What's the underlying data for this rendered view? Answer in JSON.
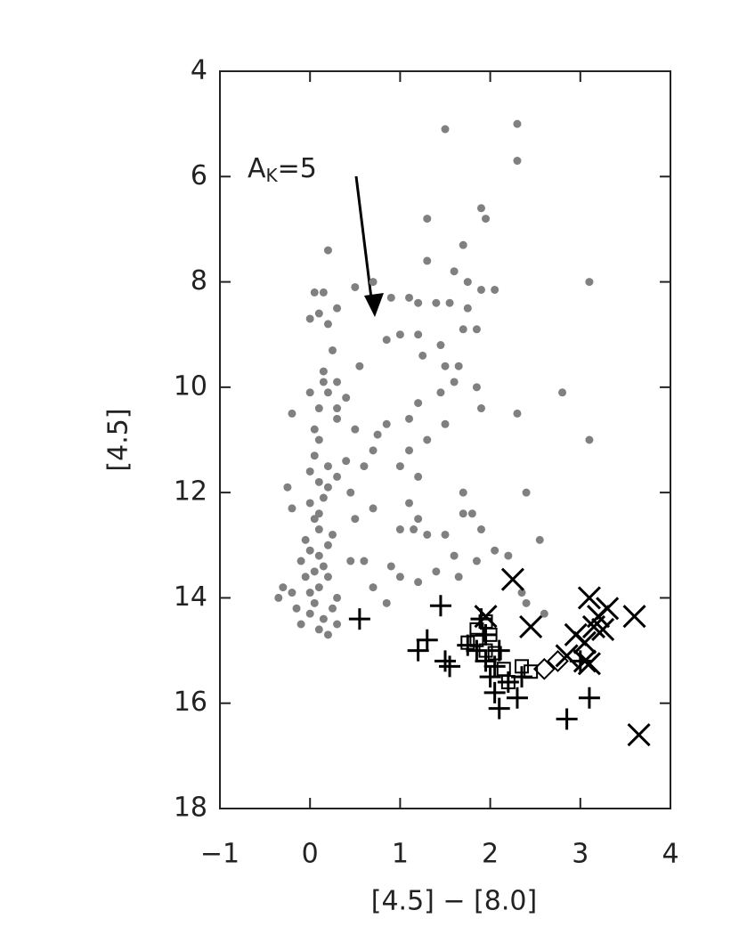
{
  "chart_data": {
    "type": "scatter",
    "xlabel": "[4.5] − [8.0]",
    "ylabel": "[4.5]",
    "annotation": {
      "text": "A",
      "subscript": "K",
      "suffix": "=5"
    },
    "xlim": [
      -1,
      4
    ],
    "ylim": [
      18,
      4
    ],
    "xticks": [
      {
        "value": -1,
        "label": "−1"
      },
      0,
      1,
      2,
      3,
      4
    ],
    "yticks": [
      4,
      6,
      8,
      10,
      12,
      14,
      16,
      18
    ],
    "series": [
      {
        "marker": "circle",
        "color": "#808080",
        "x": [
          0.2,
          0.05,
          0.15,
          0.0,
          0.1,
          0.2,
          0.3,
          0.5,
          0.7,
          0.9,
          1.1,
          1.2,
          1.5,
          2.3,
          2.3,
          1.3,
          1.9,
          1.95,
          1.7,
          1.6,
          1.75,
          1.55,
          1.4,
          1.75,
          1.9,
          2.05,
          3.1,
          1.3,
          1.85,
          1.7,
          1.45,
          1.2,
          1.25,
          1.0,
          0.85,
          0.55,
          0.25,
          0.15,
          0.3,
          0.2,
          0.4,
          0.1,
          0.3,
          0.5,
          0.75,
          0.85,
          1.1,
          1.2,
          1.45,
          1.6,
          1.85,
          1.9,
          2.3,
          2.8,
          3.1,
          1.65,
          1.5,
          1.5,
          1.3,
          1.1,
          1.2,
          1.0,
          0.7,
          0.6,
          0.4,
          0.3,
          0.45,
          0.2,
          -0.2,
          -0.25,
          -0.2,
          0.5,
          0.7,
          1.1,
          1.2,
          1.7,
          1.7,
          1.8,
          2.4,
          1.0,
          1.15,
          1.3,
          1.5,
          1.6,
          1.9,
          2.05,
          2.2,
          2.55,
          0.45,
          0.6,
          0.9,
          1.0,
          1.2,
          1.4,
          1.65,
          1.85,
          0.7,
          0.85,
          0.3,
          -0.35,
          -0.3,
          -0.2,
          -0.15,
          0.0,
          0.1,
          0.2,
          0.15,
          0.3,
          2.4,
          2.35,
          2.6,
          0.05,
          0.1,
          0.05,
          0.0,
          0.1,
          0.15,
          0.0,
          0.05,
          0.1,
          -0.05,
          0.0,
          0.1,
          0.15,
          0.05,
          -0.05,
          0.1,
          0.2,
          0.25,
          0.2,
          -0.1,
          0.0,
          0.05,
          0.25,
          -0.1,
          0.1,
          0.2,
          0.3,
          0.0,
          0.15
        ],
        "values": [
          7.4,
          8.2,
          8.2,
          8.7,
          8.6,
          8.8,
          8.5,
          8.1,
          8.0,
          8.3,
          8.3,
          8.4,
          5.1,
          5.0,
          5.7,
          6.8,
          6.6,
          6.8,
          7.3,
          7.8,
          8.0,
          8.4,
          8.4,
          8.5,
          8.15,
          8.15,
          8.0,
          7.6,
          8.9,
          8.9,
          9.2,
          9.0,
          9.4,
          9.0,
          9.1,
          9.6,
          9.3,
          9.7,
          9.9,
          10.1,
          10.2,
          10.4,
          10.6,
          10.8,
          10.9,
          10.7,
          10.6,
          10.3,
          10.1,
          9.9,
          10.0,
          10.4,
          10.5,
          10.1,
          11.0,
          9.6,
          9.6,
          10.7,
          11.0,
          11.2,
          11.7,
          11.5,
          11.2,
          11.5,
          11.4,
          11.7,
          12.0,
          11.9,
          10.5,
          11.9,
          12.3,
          12.5,
          12.3,
          12.2,
          12.5,
          12.0,
          12.4,
          12.4,
          12.0,
          12.7,
          12.7,
          12.8,
          12.8,
          13.2,
          12.7,
          13.1,
          13.2,
          12.9,
          13.3,
          13.3,
          13.4,
          13.6,
          13.7,
          13.5,
          13.6,
          13.3,
          13.8,
          14.1,
          14.0,
          14.0,
          13.8,
          13.9,
          14.2,
          14.3,
          14.6,
          14.7,
          14.4,
          14.5,
          14.1,
          13.9,
          14.3,
          10.8,
          11.0,
          11.3,
          11.6,
          11.8,
          12.1,
          12.2,
          12.5,
          12.7,
          12.9,
          13.1,
          13.2,
          13.4,
          13.5,
          13.6,
          13.8,
          13.0,
          12.8,
          13.6,
          13.3,
          13.9,
          14.1,
          14.2,
          14.5,
          12.4,
          11.5,
          10.4,
          10.1,
          9.9
        ]
      },
      {
        "marker": "plus",
        "color": "#000000",
        "x": [
          0.55,
          1.45,
          1.2,
          1.3,
          1.5,
          1.55,
          1.75,
          1.85,
          1.9,
          1.95,
          2.0,
          2.05,
          2.1,
          2.05,
          2.2,
          2.3,
          2.35,
          2.85,
          3.1,
          3.0,
          1.95,
          2.1
        ],
        "values": [
          14.4,
          14.15,
          15.0,
          14.8,
          15.2,
          15.3,
          14.9,
          15.0,
          14.4,
          15.2,
          15.5,
          15.8,
          16.1,
          15.3,
          15.6,
          15.9,
          15.5,
          16.3,
          15.9,
          15.2,
          14.7,
          15.0
        ]
      },
      {
        "marker": "square",
        "color": "#000000",
        "x": [
          1.75,
          1.85,
          1.95,
          2.05,
          2.15,
          2.2,
          2.35,
          2.45,
          2.0,
          1.85,
          1.95
        ],
        "values": [
          14.85,
          14.8,
          15.0,
          15.05,
          15.35,
          15.6,
          15.3,
          15.4,
          14.7,
          14.6,
          14.45
        ]
      },
      {
        "marker": "cross",
        "color": "#000000",
        "x": [
          2.25,
          2.45,
          1.95,
          2.85,
          2.95,
          3.1,
          3.2,
          3.3,
          3.25,
          3.05,
          3.15,
          3.6,
          3.05,
          3.1,
          3.65
        ],
        "values": [
          13.65,
          14.55,
          14.35,
          15.1,
          14.7,
          14.0,
          14.35,
          14.2,
          14.6,
          14.85,
          14.55,
          14.35,
          15.2,
          15.25,
          16.6
        ]
      },
      {
        "marker": "diamond",
        "color": "#000000",
        "x": [
          2.75,
          2.6
        ],
        "values": [
          15.2,
          15.35
        ]
      }
    ]
  }
}
